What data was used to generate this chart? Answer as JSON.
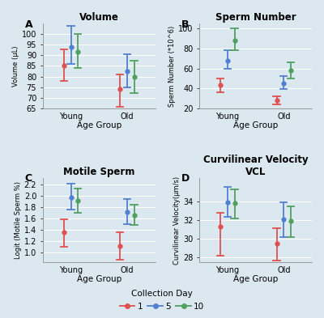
{
  "panels": [
    {
      "label": "A",
      "title": "Volume",
      "ylabel": "Volume (μL)",
      "xlabel": "Age Group",
      "ylim": [
        65,
        105
      ],
      "yticks": [
        65,
        70,
        75,
        80,
        85,
        90,
        95,
        100
      ],
      "data": {
        "Young": {
          "day1": {
            "mean": 85.0,
            "lo": 78.0,
            "hi": 93.0
          },
          "day5": {
            "mean": 94.0,
            "lo": 86.0,
            "hi": 104.0
          },
          "day10": {
            "mean": 91.5,
            "lo": 84.0,
            "hi": 100.0
          }
        },
        "Old": {
          "day1": {
            "mean": 74.0,
            "lo": 65.5,
            "hi": 81.0
          },
          "day5": {
            "mean": 82.5,
            "lo": 75.0,
            "hi": 90.5
          },
          "day10": {
            "mean": 80.0,
            "lo": 72.0,
            "hi": 87.5
          }
        }
      }
    },
    {
      "label": "B",
      "title": "Sperm Number",
      "ylabel": "Sperm Number (*10^6)",
      "xlabel": "Age Group",
      "ylim": [
        20,
        105
      ],
      "yticks": [
        20,
        40,
        60,
        80,
        100
      ],
      "data": {
        "Young": {
          "day1": {
            "mean": 43.0,
            "lo": 36.0,
            "hi": 50.0
          },
          "day5": {
            "mean": 68.0,
            "lo": 60.0,
            "hi": 78.0
          },
          "day10": {
            "mean": 88.0,
            "lo": 78.5,
            "hi": 100.0
          }
        },
        "Old": {
          "day1": {
            "mean": 27.5,
            "lo": 24.0,
            "hi": 32.0
          },
          "day5": {
            "mean": 45.0,
            "lo": 39.0,
            "hi": 52.0
          },
          "day10": {
            "mean": 58.0,
            "lo": 50.0,
            "hi": 66.0
          }
        }
      }
    },
    {
      "label": "C",
      "title": "Motile Sperm",
      "ylabel": "Logit (Motile Sperm %)",
      "xlabel": "Age Group",
      "ylim": [
        0.82,
        2.32
      ],
      "yticks": [
        1.0,
        1.2,
        1.4,
        1.6,
        1.8,
        2.0,
        2.2
      ],
      "data": {
        "Young": {
          "day1": {
            "mean": 1.35,
            "lo": 1.1,
            "hi": 1.58
          },
          "day5": {
            "mean": 1.97,
            "lo": 1.75,
            "hi": 2.21
          },
          "day10": {
            "mean": 1.91,
            "lo": 1.7,
            "hi": 2.13
          }
        },
        "Old": {
          "day1": {
            "mean": 1.11,
            "lo": 0.86,
            "hi": 1.35
          },
          "day5": {
            "mean": 1.71,
            "lo": 1.5,
            "hi": 1.94
          },
          "day10": {
            "mean": 1.66,
            "lo": 1.49,
            "hi": 1.84
          }
        }
      }
    },
    {
      "label": "D",
      "title": "Curvilinear Velocity\nVCL",
      "ylabel": "Curvilinear Velocity(μm/s)",
      "xlabel": "Age Group",
      "ylim": [
        27.5,
        36.5
      ],
      "yticks": [
        28,
        30,
        32,
        34
      ],
      "data": {
        "Young": {
          "day1": {
            "mean": 31.3,
            "lo": 28.2,
            "hi": 32.8
          },
          "day5": {
            "mean": 33.9,
            "lo": 32.3,
            "hi": 35.5
          },
          "day10": {
            "mean": 33.8,
            "lo": 32.2,
            "hi": 35.3
          }
        },
        "Old": {
          "day1": {
            "mean": 29.5,
            "lo": 27.7,
            "hi": 31.1
          },
          "day5": {
            "mean": 32.1,
            "lo": 30.2,
            "hi": 33.9
          },
          "day10": {
            "mean": 31.9,
            "lo": 30.2,
            "hi": 33.5
          }
        }
      }
    }
  ],
  "colors": {
    "day1": "#e05050",
    "day5": "#5080d0",
    "day10": "#50a060"
  },
  "age_x": {
    "Young": 1,
    "Old": 3
  },
  "day_offsets": {
    "day1": -0.25,
    "day5": 0.0,
    "day10": 0.25
  },
  "xlim": [
    0.0,
    4.0
  ],
  "legend_labels": {
    "day1": "1",
    "day5": "5",
    "day10": "10"
  },
  "background_color": "#dce8f0",
  "grid_color": "white"
}
